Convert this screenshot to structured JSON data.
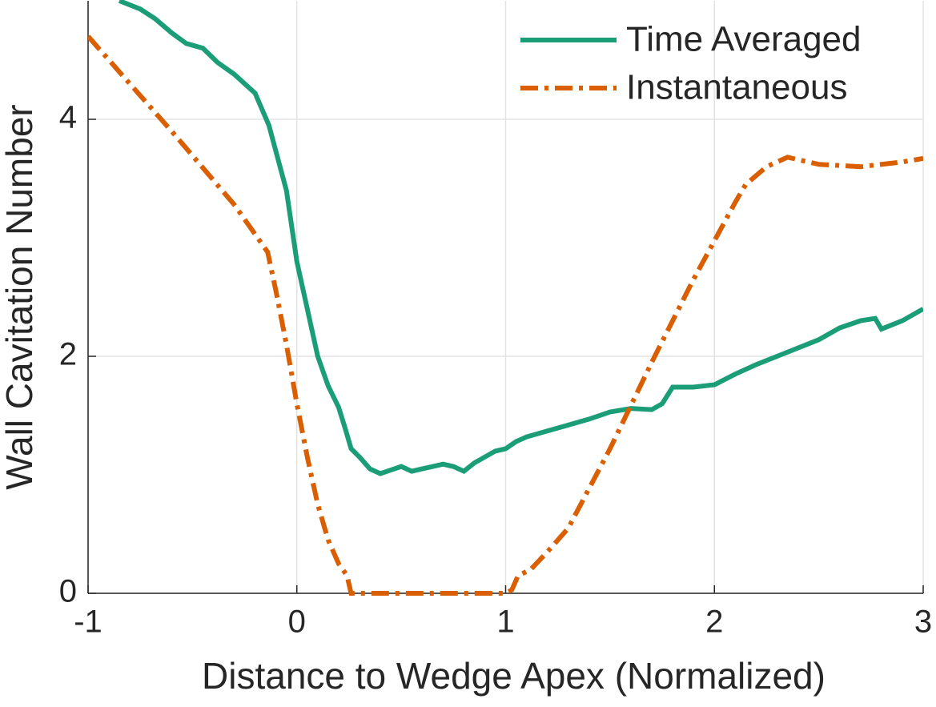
{
  "chart_data": {
    "type": "line",
    "xlabel": "Distance to Wedge Apex (Normalized)",
    "ylabel": "Wall Cavitation Number",
    "xlim": [
      -1,
      3
    ],
    "ylim": [
      0,
      5
    ],
    "xticks": [
      -1,
      0,
      1,
      2,
      3
    ],
    "yticks": [
      0,
      2,
      4
    ],
    "grid": true,
    "legend": "upper right",
    "series": [
      {
        "name": "Time Averaged",
        "color": "#1b9e77",
        "dash": "solid",
        "x": [
          -0.85,
          -0.75,
          -0.68,
          -0.6,
          -0.53,
          -0.45,
          -0.38,
          -0.3,
          -0.2,
          -0.134,
          -0.05,
          0,
          0.05,
          0.1,
          0.15,
          0.2,
          0.23,
          0.26,
          0.3,
          0.35,
          0.4,
          0.45,
          0.5,
          0.55,
          0.6,
          0.65,
          0.7,
          0.75,
          0.8,
          0.85,
          0.9,
          0.95,
          1.0,
          1.05,
          1.1,
          1.2,
          1.3,
          1.4,
          1.5,
          1.6,
          1.7,
          1.75,
          1.8,
          1.9,
          2.0,
          2.1,
          2.2,
          2.3,
          2.4,
          2.5,
          2.6,
          2.7,
          2.77,
          2.8,
          2.9,
          3.0
        ],
        "values": [
          5.0,
          4.93,
          4.85,
          4.73,
          4.64,
          4.6,
          4.48,
          4.38,
          4.22,
          3.95,
          3.4,
          2.8,
          2.4,
          2.0,
          1.75,
          1.57,
          1.4,
          1.22,
          1.15,
          1.05,
          1.01,
          1.04,
          1.07,
          1.03,
          1.05,
          1.07,
          1.09,
          1.07,
          1.03,
          1.1,
          1.15,
          1.2,
          1.22,
          1.28,
          1.32,
          1.37,
          1.42,
          1.47,
          1.53,
          1.56,
          1.55,
          1.6,
          1.74,
          1.74,
          1.76,
          1.85,
          1.93,
          2.0,
          2.07,
          2.14,
          2.24,
          2.3,
          2.32,
          2.23,
          2.3,
          2.4
        ]
      },
      {
        "name": "Instantaneous",
        "color": "#d95f02",
        "dash": "dashdot",
        "x": [
          -1,
          -0.9,
          -0.6,
          -0.3,
          -0.14,
          -0.1,
          -0.05,
          0,
          0.05,
          0.1,
          0.15,
          0.2,
          0.24,
          0.26,
          0.5,
          1.0,
          1.03,
          1.06,
          1.12,
          1.2,
          1.3,
          1.5,
          1.7,
          1.9,
          2.1,
          2.15,
          2.25,
          2.35,
          2.5,
          2.7,
          2.9,
          3.0
        ],
        "values": [
          4.7,
          4.5,
          3.9,
          3.28,
          2.88,
          2.55,
          2.1,
          1.6,
          1.15,
          0.75,
          0.45,
          0.25,
          0.15,
          0,
          0,
          0,
          0.03,
          0.15,
          0.2,
          0.35,
          0.55,
          1.22,
          1.95,
          2.65,
          3.3,
          3.45,
          3.6,
          3.68,
          3.62,
          3.6,
          3.64,
          3.67
        ]
      }
    ]
  }
}
